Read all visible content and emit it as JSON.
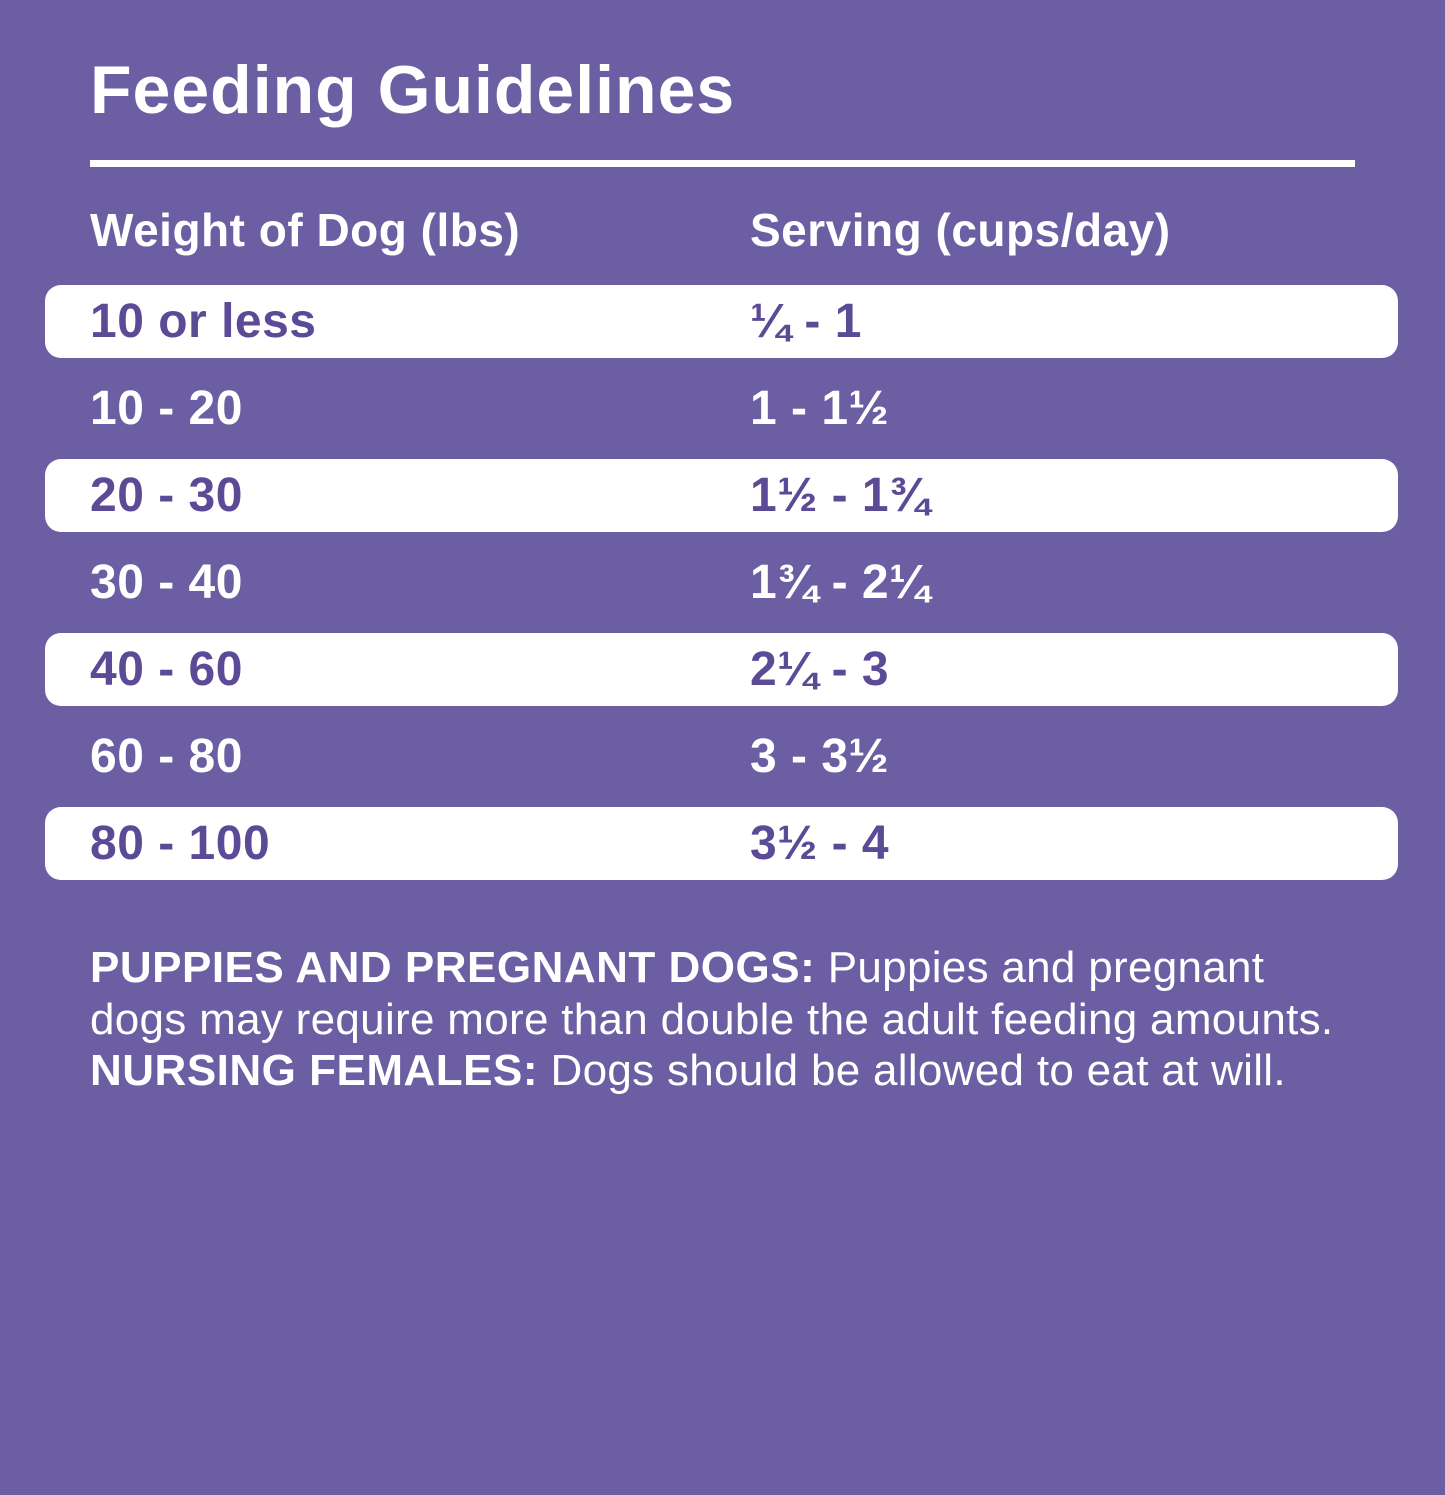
{
  "title": "Feeding Guidelines",
  "table": {
    "columns": [
      "Weight of Dog (lbs)",
      "Serving (cups/day)"
    ],
    "rows": [
      {
        "weight": "10 or less",
        "serving": "¼ - 1"
      },
      {
        "weight": "10 - 20",
        "serving": "1 - 1½"
      },
      {
        "weight": "20 - 30",
        "serving": "1½ - 1¾"
      },
      {
        "weight": "30 - 40",
        "serving": "1¾ - 2¼"
      },
      {
        "weight": "40 - 60",
        "serving": "2¼ - 3"
      },
      {
        "weight": "60 - 80",
        "serving": "3 - 3½"
      },
      {
        "weight": "80 - 100",
        "serving": "3½ - 4"
      }
    ]
  },
  "notes": {
    "puppies_label": "PUPPIES AND PREGNANT DOGS:",
    "puppies_text": " Puppies and pregnant dogs may require more than double the adult feeding amounts. ",
    "nursing_label": "NURSING FEMALES:",
    "nursing_text": " Dogs should be allowed to eat at will."
  },
  "colors": {
    "background": "#6B5EA2",
    "row_white": "#FFFFFF",
    "row_text": "#5B4B97",
    "text_white": "#FFFFFF"
  }
}
